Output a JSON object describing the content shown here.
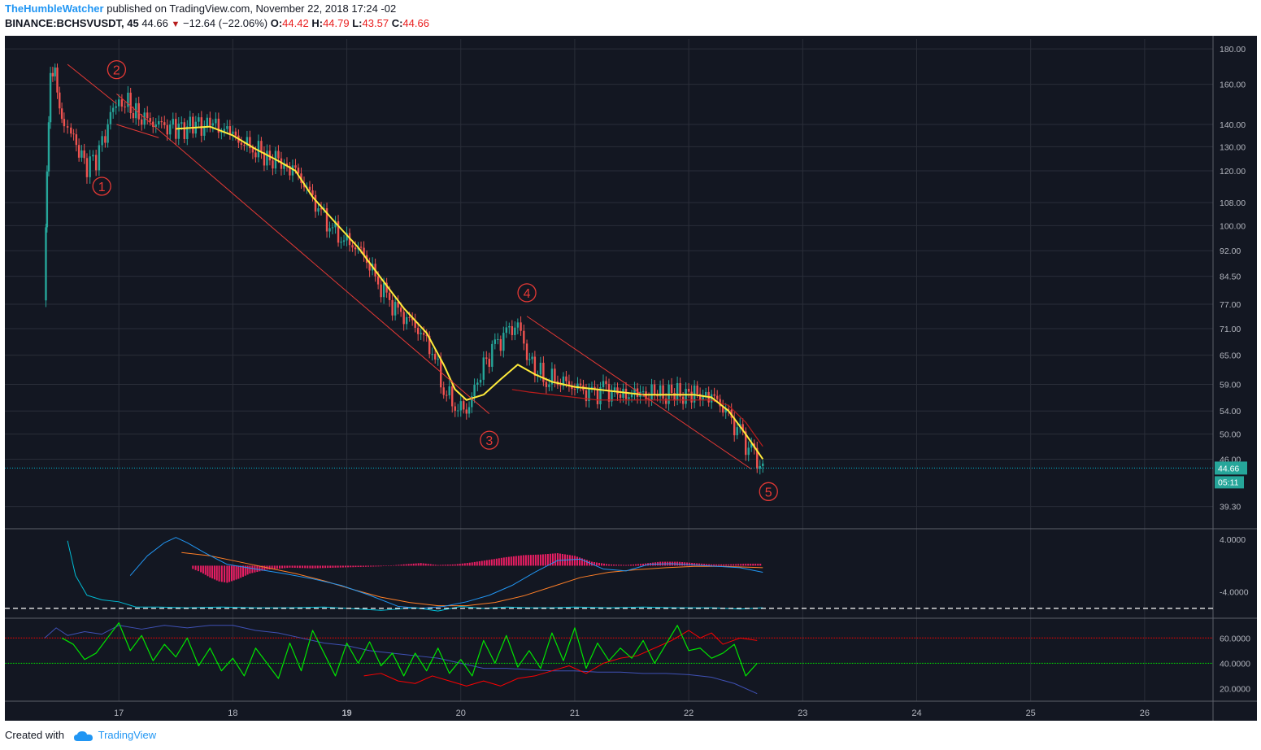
{
  "header": {
    "author": "TheHumbleWatcher",
    "published_text": "published on TradingView.com, November 22, 2018 17:24 -02",
    "symbol": "BINANCE:BCHSVUSDT, 45",
    "last": "44.66",
    "change": "−12.64 (−22.06%)",
    "o_label": "O:",
    "o_val": "44.42",
    "h_label": "H:",
    "h_val": "44.79",
    "l_label": "L:",
    "l_val": "43.57",
    "c_label": "C:",
    "c_val": "44.66"
  },
  "footer": {
    "created_with": "Created with",
    "brand": "TradingView"
  },
  "colors": {
    "background": "#131722",
    "grid": "#2a2e39",
    "candle_up": "#26a69a",
    "candle_down": "#ef5350",
    "ma_fast": "#ffeb3b",
    "ma_slow": "#b71c1c",
    "wave": "#e53935",
    "macd": "#2196f3",
    "signal": "#ff7f27",
    "histogram": "#e91e63",
    "aux": "#00bcd4",
    "rsi_green": "#00e600",
    "rsi_red": "#ff0000",
    "rsi_blue": "#3f51b5",
    "price_tag": "#26a69a",
    "axis_text": "#b2b5be"
  },
  "chart_data": {
    "type": "candlestick",
    "price_axis_ticks": [
      "180.00",
      "160.00",
      "140.00",
      "130.00",
      "120.00",
      "108.00",
      "100.00",
      "92.00",
      "84.50",
      "77.00",
      "71.00",
      "65.00",
      "59.00",
      "54.00",
      "50.00",
      "46.00",
      "39.30"
    ],
    "time_axis_labels": [
      "17",
      "18",
      "19",
      "20",
      "21",
      "22",
      "23",
      "24",
      "25",
      "26"
    ],
    "time_axis_bold": [
      "19"
    ],
    "last_price": "44.66",
    "countdown": "05:11",
    "price_scale": "log",
    "ylim": [
      36.5,
      186
    ],
    "xlim": [
      16.0,
      26.6
    ],
    "wave_labels": [
      {
        "text": "1",
        "x": 16.85,
        "y": 114
      },
      {
        "text": "2",
        "x": 16.98,
        "y": 168
      },
      {
        "text": "3",
        "x": 20.25,
        "y": 49
      },
      {
        "text": "4",
        "x": 20.58,
        "y": 80
      },
      {
        "text": "5",
        "x": 22.7,
        "y": 41.3
      }
    ],
    "wave_lines": [
      {
        "points": [
          [
            16.55,
            171
          ],
          [
            16.98,
            150
          ]
        ]
      },
      {
        "points": [
          [
            16.98,
            155
          ],
          [
            20.25,
            53.5
          ]
        ]
      },
      {
        "points": [
          [
            20.58,
            74
          ],
          [
            22.55,
            44.5
          ]
        ]
      },
      {
        "points": [
          [
            16.98,
            140
          ],
          [
            17.35,
            134
          ]
        ]
      }
    ],
    "price_path": [
      [
        16.35,
        78
      ],
      [
        16.37,
        118
      ],
      [
        16.4,
        165
      ],
      [
        16.44,
        170
      ],
      [
        16.48,
        150
      ],
      [
        16.52,
        142
      ],
      [
        16.58,
        138
      ],
      [
        16.65,
        128
      ],
      [
        16.72,
        122
      ],
      [
        16.8,
        125
      ],
      [
        16.88,
        135
      ],
      [
        16.95,
        148
      ],
      [
        17.0,
        152
      ],
      [
        17.08,
        150
      ],
      [
        17.15,
        145
      ],
      [
        17.25,
        142
      ],
      [
        17.35,
        140
      ],
      [
        17.5,
        138
      ],
      [
        17.65,
        139
      ],
      [
        17.8,
        140
      ],
      [
        17.95,
        137
      ],
      [
        18.05,
        133
      ],
      [
        18.15,
        130
      ],
      [
        18.3,
        126
      ],
      [
        18.45,
        123
      ],
      [
        18.55,
        120
      ],
      [
        18.65,
        113
      ],
      [
        18.75,
        106
      ],
      [
        18.85,
        100
      ],
      [
        18.95,
        96
      ],
      [
        19.05,
        94
      ],
      [
        19.15,
        91
      ],
      [
        19.25,
        84
      ],
      [
        19.35,
        79
      ],
      [
        19.45,
        75
      ],
      [
        19.55,
        73
      ],
      [
        19.65,
        70
      ],
      [
        19.75,
        66
      ],
      [
        19.85,
        58
      ],
      [
        19.95,
        55
      ],
      [
        20.05,
        54
      ],
      [
        20.12,
        58
      ],
      [
        20.2,
        63
      ],
      [
        20.3,
        67
      ],
      [
        20.4,
        70
      ],
      [
        20.5,
        72
      ],
      [
        20.58,
        65
      ],
      [
        20.65,
        62
      ],
      [
        20.75,
        60
      ],
      [
        20.85,
        60
      ],
      [
        20.95,
        59
      ],
      [
        21.05,
        58
      ],
      [
        21.15,
        57
      ],
      [
        21.25,
        58
      ],
      [
        21.4,
        57
      ],
      [
        21.55,
        57
      ],
      [
        21.7,
        57
      ],
      [
        21.85,
        57
      ],
      [
        22.0,
        57
      ],
      [
        22.15,
        57
      ],
      [
        22.25,
        56
      ],
      [
        22.35,
        53
      ],
      [
        22.45,
        50
      ],
      [
        22.55,
        47
      ],
      [
        22.65,
        44.66
      ]
    ],
    "ma_fast": [
      [
        17.5,
        138
      ],
      [
        17.8,
        139
      ],
      [
        18.0,
        135
      ],
      [
        18.2,
        129
      ],
      [
        18.4,
        124
      ],
      [
        18.55,
        120
      ],
      [
        18.7,
        110
      ],
      [
        18.9,
        101
      ],
      [
        19.1,
        93
      ],
      [
        19.3,
        84
      ],
      [
        19.5,
        76
      ],
      [
        19.7,
        70
      ],
      [
        19.85,
        63
      ],
      [
        19.95,
        58
      ],
      [
        20.05,
        56
      ],
      [
        20.2,
        57
      ],
      [
        20.35,
        60
      ],
      [
        20.5,
        63
      ],
      [
        20.65,
        61
      ],
      [
        20.8,
        59.5
      ],
      [
        21.0,
        58.5
      ],
      [
        21.2,
        58
      ],
      [
        21.4,
        57.5
      ],
      [
        21.6,
        57
      ],
      [
        21.85,
        57
      ],
      [
        22.05,
        57
      ],
      [
        22.2,
        56.5
      ],
      [
        22.35,
        54
      ],
      [
        22.5,
        50
      ],
      [
        22.65,
        46
      ]
    ],
    "ma_slow": [
      [
        20.45,
        58
      ],
      [
        20.6,
        57.5
      ],
      [
        20.8,
        57
      ],
      [
        21.0,
        56.5
      ],
      [
        21.2,
        56
      ],
      [
        21.4,
        56
      ],
      [
        21.6,
        56
      ],
      [
        21.8,
        56
      ],
      [
        22.0,
        56
      ],
      [
        22.2,
        56
      ],
      [
        22.35,
        55
      ],
      [
        22.5,
        52
      ],
      [
        22.65,
        48
      ]
    ],
    "macd": {
      "axis_ticks": [
        "4.0000",
        "-4.0000"
      ],
      "ylim": [
        -8,
        5.5
      ],
      "zero_line_value": -6.5,
      "histogram": [
        [
          17.65,
          -0.5
        ],
        [
          17.72,
          -1.0
        ],
        [
          17.8,
          -1.8
        ],
        [
          17.88,
          -2.4
        ],
        [
          17.95,
          -2.6
        ],
        [
          18.05,
          -2.0
        ],
        [
          18.15,
          -1.2
        ],
        [
          18.3,
          -0.6
        ],
        [
          18.5,
          -0.3
        ],
        [
          18.7,
          -0.4
        ],
        [
          18.9,
          -0.3
        ],
        [
          19.1,
          -0.2
        ],
        [
          19.3,
          -0.1
        ],
        [
          19.5,
          0.2
        ],
        [
          19.65,
          0.4
        ],
        [
          19.8,
          0.1
        ],
        [
          19.95,
          0.2
        ],
        [
          20.1,
          0.5
        ],
        [
          20.25,
          0.9
        ],
        [
          20.4,
          1.3
        ],
        [
          20.55,
          1.6
        ],
        [
          20.7,
          1.7
        ],
        [
          20.85,
          1.9
        ],
        [
          21.0,
          1.5
        ],
        [
          21.15,
          0.6
        ],
        [
          21.3,
          0.2
        ],
        [
          21.45,
          0.1
        ],
        [
          21.6,
          0.3
        ],
        [
          21.75,
          0.6
        ],
        [
          21.9,
          0.6
        ],
        [
          22.05,
          0.4
        ],
        [
          22.2,
          0.2
        ],
        [
          22.35,
          0.2
        ],
        [
          22.5,
          0.3
        ],
        [
          22.65,
          0.3
        ]
      ],
      "macd_line": [
        [
          17.1,
          -1.5
        ],
        [
          17.25,
          1.5
        ],
        [
          17.4,
          3.5
        ],
        [
          17.5,
          4.3
        ],
        [
          17.6,
          3.5
        ],
        [
          17.75,
          2.0
        ],
        [
          17.95,
          0.2
        ],
        [
          18.2,
          -0.5
        ],
        [
          18.45,
          -1.2
        ],
        [
          18.7,
          -2.0
        ],
        [
          18.95,
          -3.0
        ],
        [
          19.2,
          -4.5
        ],
        [
          19.45,
          -6.2
        ],
        [
          19.65,
          -6.5
        ],
        [
          19.85,
          -6.2
        ],
        [
          20.05,
          -5.5
        ],
        [
          20.25,
          -4.5
        ],
        [
          20.45,
          -3.0
        ],
        [
          20.65,
          -1.0
        ],
        [
          20.85,
          0.8
        ],
        [
          21.05,
          1.0
        ],
        [
          21.25,
          -0.5
        ],
        [
          21.45,
          -0.8
        ],
        [
          21.65,
          0.2
        ],
        [
          21.85,
          0.3
        ],
        [
          22.05,
          0.1
        ],
        [
          22.25,
          -0.1
        ],
        [
          22.45,
          -0.3
        ],
        [
          22.65,
          -1.0
        ]
      ],
      "signal_line": [
        [
          17.55,
          2.0
        ],
        [
          17.8,
          1.5
        ],
        [
          18.05,
          0.6
        ],
        [
          18.3,
          -0.3
        ],
        [
          18.55,
          -1.2
        ],
        [
          18.8,
          -2.3
        ],
        [
          19.05,
          -3.6
        ],
        [
          19.3,
          -4.8
        ],
        [
          19.55,
          -5.6
        ],
        [
          19.8,
          -6.1
        ],
        [
          20.05,
          -6.1
        ],
        [
          20.3,
          -5.6
        ],
        [
          20.55,
          -4.6
        ],
        [
          20.8,
          -3.2
        ],
        [
          21.05,
          -1.8
        ],
        [
          21.3,
          -1.0
        ],
        [
          21.55,
          -0.6
        ],
        [
          21.8,
          -0.3
        ],
        [
          22.05,
          -0.1
        ],
        [
          22.3,
          -0.1
        ],
        [
          22.65,
          -0.3
        ]
      ],
      "aux_line": [
        [
          16.55,
          3.8
        ],
        [
          16.62,
          -1.5
        ],
        [
          16.72,
          -4.5
        ],
        [
          16.85,
          -5.2
        ],
        [
          17.0,
          -5.5
        ],
        [
          17.15,
          -6.3
        ],
        [
          17.35,
          -6.3
        ],
        [
          17.6,
          -6.4
        ],
        [
          17.9,
          -6.3
        ],
        [
          18.2,
          -6.4
        ],
        [
          18.5,
          -6.4
        ],
        [
          18.8,
          -6.3
        ],
        [
          19.0,
          -6.5
        ],
        [
          19.3,
          -6.8
        ],
        [
          19.6,
          -6.4
        ],
        [
          19.8,
          -6.9
        ],
        [
          20.0,
          -6.2
        ],
        [
          20.2,
          -6.5
        ],
        [
          20.4,
          -6.3
        ],
        [
          20.6,
          -6.4
        ],
        [
          20.8,
          -6.4
        ],
        [
          21.0,
          -6.3
        ],
        [
          21.3,
          -6.4
        ],
        [
          21.6,
          -6.3
        ],
        [
          21.9,
          -6.4
        ],
        [
          22.2,
          -6.4
        ],
        [
          22.45,
          -6.6
        ],
        [
          22.65,
          -6.4
        ]
      ]
    },
    "rsi": {
      "axis_ticks": [
        "60.0000",
        "40.0000",
        "20.0000"
      ],
      "ylim": [
        10,
        75
      ],
      "upper_band": 60,
      "lower_band": 40,
      "green_line": [
        [
          16.5,
          60
        ],
        [
          16.6,
          55
        ],
        [
          16.7,
          43
        ],
        [
          16.8,
          48
        ],
        [
          16.9,
          60
        ],
        [
          17.0,
          72
        ],
        [
          17.1,
          50
        ],
        [
          17.2,
          62
        ],
        [
          17.3,
          42
        ],
        [
          17.4,
          55
        ],
        [
          17.5,
          45
        ],
        [
          17.6,
          60
        ],
        [
          17.7,
          38
        ],
        [
          17.8,
          52
        ],
        [
          17.9,
          34
        ],
        [
          18.0,
          44
        ],
        [
          18.1,
          30
        ],
        [
          18.2,
          52
        ],
        [
          18.3,
          40
        ],
        [
          18.4,
          28
        ],
        [
          18.5,
          56
        ],
        [
          18.6,
          34
        ],
        [
          18.7,
          66
        ],
        [
          18.8,
          48
        ],
        [
          18.9,
          30
        ],
        [
          19.0,
          56
        ],
        [
          19.1,
          40
        ],
        [
          19.2,
          57
        ],
        [
          19.3,
          38
        ],
        [
          19.4,
          48
        ],
        [
          19.5,
          30
        ],
        [
          19.6,
          48
        ],
        [
          19.7,
          34
        ],
        [
          19.8,
          52
        ],
        [
          19.9,
          32
        ],
        [
          20.0,
          43
        ],
        [
          20.1,
          30
        ],
        [
          20.2,
          58
        ],
        [
          20.3,
          40
        ],
        [
          20.4,
          62
        ],
        [
          20.5,
          37
        ],
        [
          20.6,
          50
        ],
        [
          20.7,
          36
        ],
        [
          20.8,
          64
        ],
        [
          20.9,
          42
        ],
        [
          21.0,
          68
        ],
        [
          21.1,
          36
        ],
        [
          21.2,
          56
        ],
        [
          21.3,
          42
        ],
        [
          21.4,
          52
        ],
        [
          21.5,
          44
        ],
        [
          21.6,
          58
        ],
        [
          21.7,
          40
        ],
        [
          21.8,
          55
        ],
        [
          21.9,
          70
        ],
        [
          22.0,
          50
        ],
        [
          22.1,
          52
        ],
        [
          22.2,
          44
        ],
        [
          22.3,
          48
        ],
        [
          22.4,
          55
        ],
        [
          22.5,
          30
        ],
        [
          22.6,
          40
        ]
      ],
      "red_line": [
        [
          19.15,
          30
        ],
        [
          19.3,
          32
        ],
        [
          19.45,
          26
        ],
        [
          19.6,
          24
        ],
        [
          19.75,
          30
        ],
        [
          19.9,
          26
        ],
        [
          20.05,
          22
        ],
        [
          20.2,
          26
        ],
        [
          20.35,
          22
        ],
        [
          20.5,
          28
        ],
        [
          20.65,
          30
        ],
        [
          20.8,
          34
        ],
        [
          20.95,
          38
        ],
        [
          21.1,
          32
        ],
        [
          21.25,
          40
        ],
        [
          21.4,
          44
        ],
        [
          21.55,
          46
        ],
        [
          21.7,
          52
        ],
        [
          21.85,
          58
        ],
        [
          22.0,
          66
        ],
        [
          22.1,
          60
        ],
        [
          22.2,
          64
        ],
        [
          22.3,
          55
        ],
        [
          22.45,
          60
        ],
        [
          22.6,
          58
        ]
      ],
      "blue_line": [
        [
          16.35,
          60
        ],
        [
          16.45,
          68
        ],
        [
          16.55,
          62
        ],
        [
          16.7,
          65
        ],
        [
          16.85,
          63
        ],
        [
          17.0,
          70
        ],
        [
          17.2,
          67
        ],
        [
          17.4,
          70
        ],
        [
          17.6,
          68
        ],
        [
          17.8,
          70
        ],
        [
          18.0,
          70
        ],
        [
          18.2,
          66
        ],
        [
          18.4,
          64
        ],
        [
          18.6,
          60
        ],
        [
          18.8,
          56
        ],
        [
          19.0,
          54
        ],
        [
          19.2,
          50
        ],
        [
          19.4,
          48
        ],
        [
          19.6,
          46
        ],
        [
          19.8,
          44
        ],
        [
          20.0,
          40
        ],
        [
          20.2,
          36
        ],
        [
          20.4,
          36
        ],
        [
          20.6,
          35
        ],
        [
          20.8,
          34
        ],
        [
          21.0,
          34
        ],
        [
          21.2,
          33
        ],
        [
          21.4,
          33
        ],
        [
          21.6,
          32
        ],
        [
          21.8,
          32
        ],
        [
          22.0,
          31
        ],
        [
          22.2,
          29
        ],
        [
          22.4,
          24
        ],
        [
          22.6,
          16
        ]
      ]
    }
  }
}
